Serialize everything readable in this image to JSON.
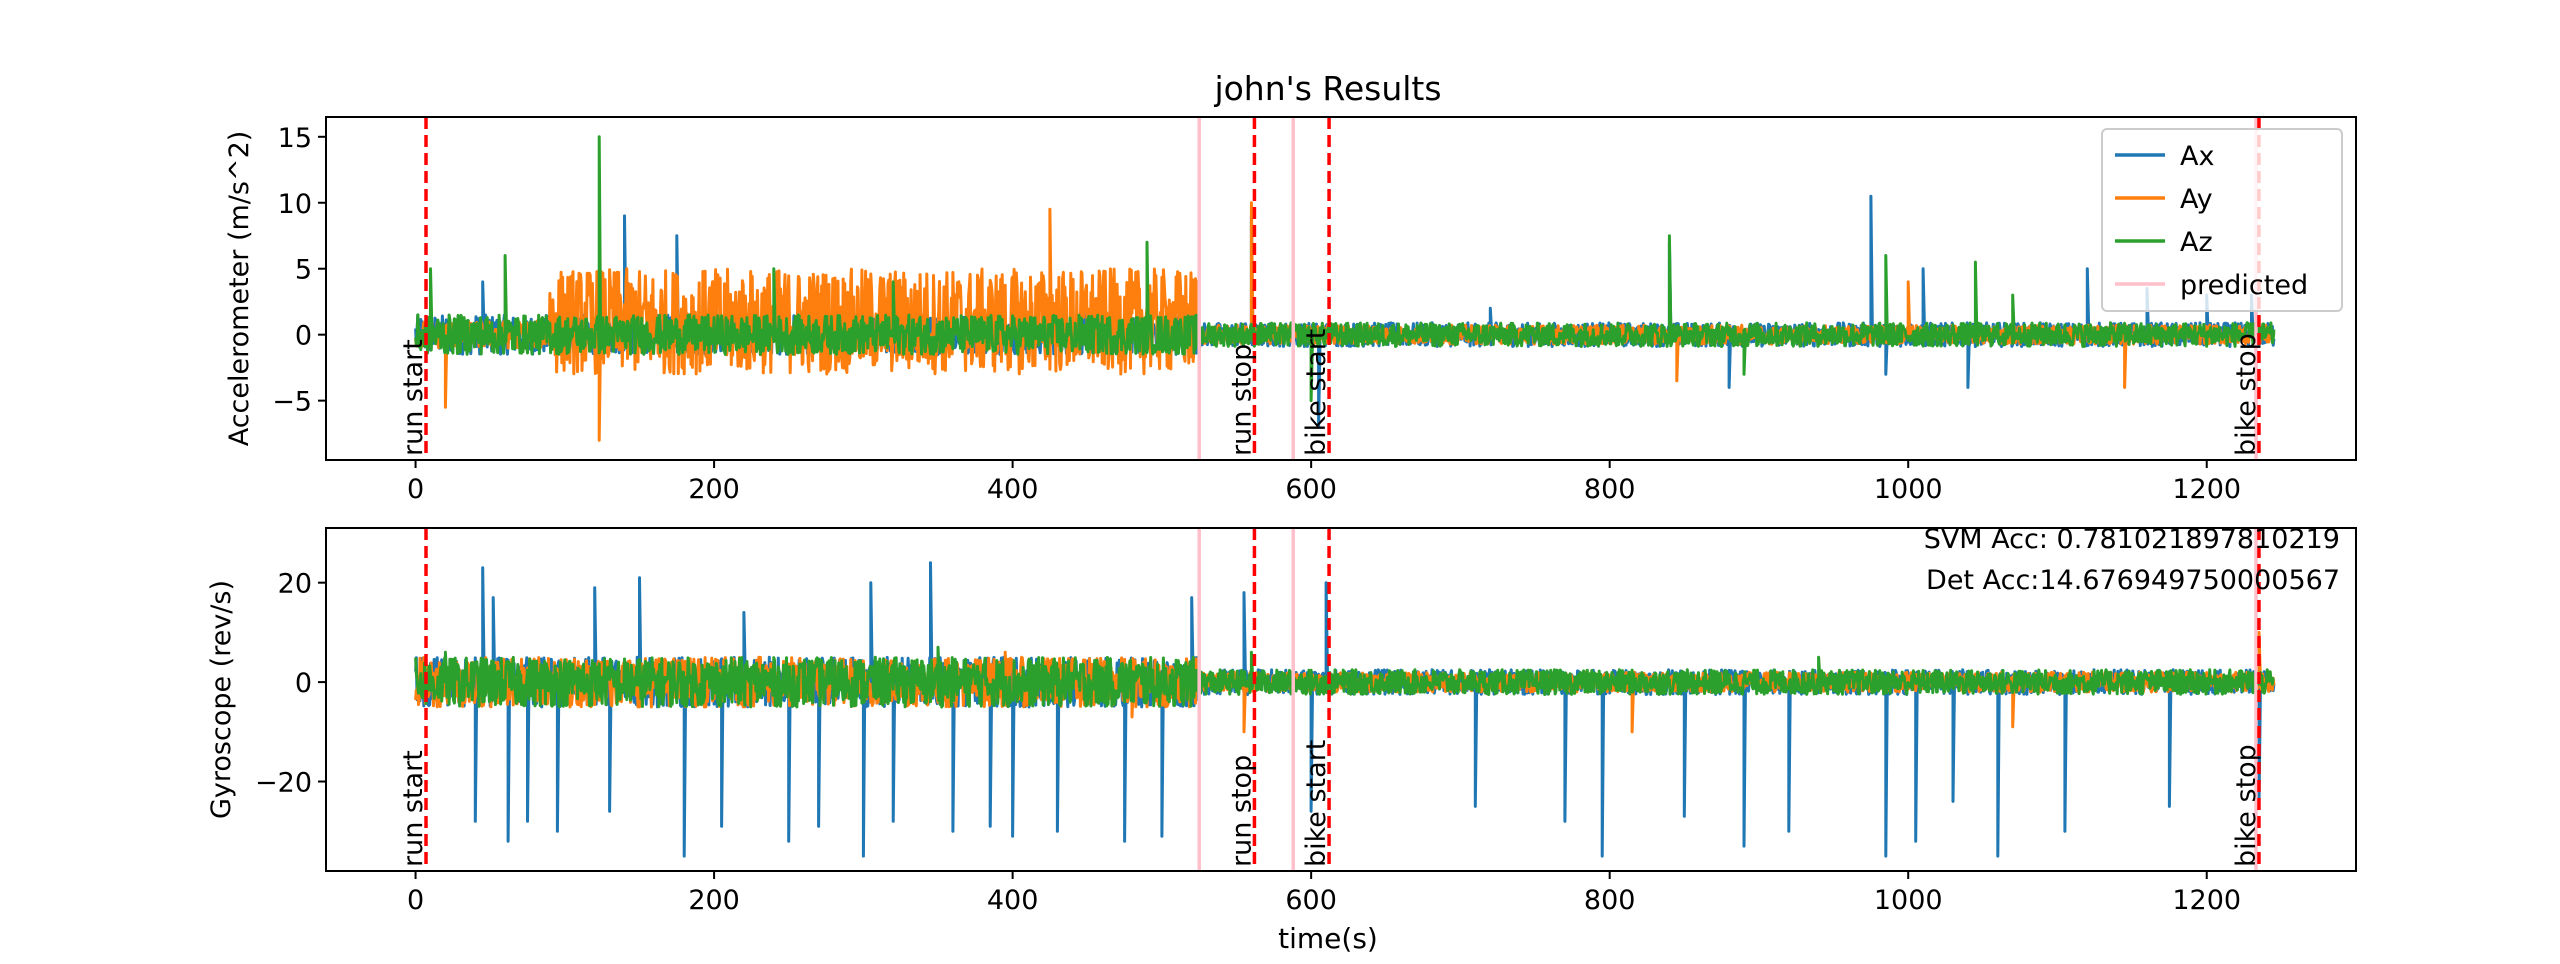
{
  "chart_data": [
    {
      "type": "line",
      "title": "john's Results",
      "xlabel": "",
      "ylabel": "Accelerometer (m/s^2)",
      "xlim": [
        -60,
        1300
      ],
      "ylim": [
        -9.5,
        16.5
      ],
      "xticks": [
        0,
        200,
        400,
        600,
        800,
        1000,
        1200
      ],
      "yticks": [
        -5,
        0,
        5,
        10,
        15
      ],
      "grid": false,
      "legend": {
        "placement": "upper right",
        "entries": [
          "Ax",
          "Ay",
          "Az",
          "predicted"
        ]
      },
      "series": [
        {
          "name": "Ax",
          "color": "#1f77b4",
          "style": "dense noisy signal, band about ±1.5 around 0, spikes up to 10 near x=985",
          "values_note": "spikes",
          "spikes": [
            [
              45,
              4
            ],
            [
              140,
              9
            ],
            [
              175,
              7.5
            ],
            [
              560,
              9
            ],
            [
              605,
              -7
            ],
            [
              720,
              2
            ],
            [
              840,
              7
            ],
            [
              880,
              -4
            ],
            [
              975,
              10.5
            ],
            [
              985,
              -3
            ],
            [
              1010,
              5
            ],
            [
              1040,
              -4
            ],
            [
              1120,
              5
            ],
            [
              1160,
              3.5
            ],
            [
              1200,
              3
            ],
            [
              1230,
              3
            ]
          ]
        },
        {
          "name": "Ay",
          "color": "#ff7f0e",
          "style": "wide oscillation band -3 to 5 between x=90 and x=525, narrow elsewhere",
          "band": {
            "x_start": 90,
            "x_end": 525,
            "low": -3,
            "high": 5
          },
          "spikes": [
            [
              20,
              -5.5
            ],
            [
              123,
              -8
            ],
            [
              425,
              9.5
            ],
            [
              560,
              10
            ],
            [
              845,
              -3.5
            ],
            [
              1000,
              4
            ],
            [
              1145,
              -4
            ]
          ]
        },
        {
          "name": "Az",
          "color": "#2ca02c",
          "style": "dense noisy signal around 0, band about ±1.5",
          "spikes": [
            [
              10,
              5
            ],
            [
              60,
              6
            ],
            [
              123,
              15
            ],
            [
              240,
              5
            ],
            [
              320,
              4
            ],
            [
              490,
              7
            ],
            [
              600,
              -5
            ],
            [
              840,
              7.5
            ],
            [
              890,
              -3
            ],
            [
              985,
              6
            ],
            [
              1045,
              5.5
            ],
            [
              1070,
              3
            ]
          ]
        }
      ],
      "vlines": [
        {
          "x": 7,
          "color": "#ff0000",
          "style": "dashed",
          "label": "run start"
        },
        {
          "x": 525,
          "color": "#ffc0cb",
          "style": "solid",
          "label": ""
        },
        {
          "x": 562,
          "color": "#ff0000",
          "style": "dashed",
          "label": "run stop"
        },
        {
          "x": 588,
          "color": "#ffc0cb",
          "style": "solid",
          "label": ""
        },
        {
          "x": 612,
          "color": "#ff0000",
          "style": "dashed",
          "label": "bike start"
        },
        {
          "x": 1233,
          "color": "#ffc0cb",
          "style": "solid",
          "label": ""
        },
        {
          "x": 1235,
          "color": "#ff0000",
          "style": "dashed",
          "label": "bike stop"
        }
      ]
    },
    {
      "type": "line",
      "title": "",
      "xlabel": "time(s)",
      "ylabel": "Gyroscope (rev/s)",
      "xlim": [
        -60,
        1300
      ],
      "ylim": [
        -38,
        31
      ],
      "xticks": [
        0,
        200,
        400,
        600,
        800,
        1000,
        1200
      ],
      "yticks": [
        -20,
        0,
        20
      ],
      "grid": false,
      "annotations": [
        "SVM Acc: 0.781021897810219",
        "Det Acc:14.676949750000567"
      ],
      "series": [
        {
          "name": "Ax",
          "color": "#1f77b4",
          "style": "dense signal band about ±5 to x=525, narrower after; many tall spikes",
          "spikes": [
            [
              40,
              -28
            ],
            [
              45,
              23
            ],
            [
              52,
              17
            ],
            [
              62,
              -32
            ],
            [
              75,
              -28
            ],
            [
              95,
              -30
            ],
            [
              120,
              19
            ],
            [
              130,
              -26
            ],
            [
              150,
              21
            ],
            [
              180,
              -35
            ],
            [
              205,
              -29
            ],
            [
              220,
              14
            ],
            [
              250,
              -32
            ],
            [
              270,
              -29
            ],
            [
              300,
              -35
            ],
            [
              305,
              20
            ],
            [
              320,
              -28
            ],
            [
              345,
              24
            ],
            [
              360,
              -30
            ],
            [
              385,
              -29
            ],
            [
              400,
              -31
            ],
            [
              430,
              -30
            ],
            [
              475,
              -32
            ],
            [
              500,
              -31
            ],
            [
              520,
              17
            ],
            [
              555,
              18
            ],
            [
              600,
              -26
            ],
            [
              610,
              20
            ],
            [
              710,
              -25
            ],
            [
              770,
              -28
            ],
            [
              795,
              -35
            ],
            [
              850,
              -27
            ],
            [
              890,
              -33
            ],
            [
              920,
              -30
            ],
            [
              985,
              -35
            ],
            [
              1005,
              -32
            ],
            [
              1030,
              -24
            ],
            [
              1060,
              -35
            ],
            [
              1105,
              -30
            ],
            [
              1175,
              -25
            ],
            [
              1235,
              -25
            ]
          ]
        },
        {
          "name": "Ay",
          "color": "#ff7f0e",
          "style": "band about ±4 around 0",
          "spikes": [
            [
              395,
              6
            ],
            [
              480,
              -7
            ],
            [
              555,
              -10
            ],
            [
              815,
              -10
            ],
            [
              1070,
              -9
            ],
            [
              1235,
              10
            ]
          ]
        },
        {
          "name": "Az",
          "color": "#2ca02c",
          "style": "dense band about ±5 around 0 up to x=525, narrower after",
          "spikes": [
            [
              20,
              6
            ],
            [
              350,
              7
            ],
            [
              560,
              6
            ],
            [
              940,
              5
            ]
          ]
        }
      ],
      "vlines": [
        {
          "x": 7,
          "color": "#ff0000",
          "style": "dashed",
          "label": "run start"
        },
        {
          "x": 525,
          "color": "#ffc0cb",
          "style": "solid",
          "label": ""
        },
        {
          "x": 562,
          "color": "#ff0000",
          "style": "dashed",
          "label": "run stop"
        },
        {
          "x": 588,
          "color": "#ffc0cb",
          "style": "solid",
          "label": ""
        },
        {
          "x": 612,
          "color": "#ff0000",
          "style": "dashed",
          "label": "bike start"
        },
        {
          "x": 1233,
          "color": "#ffc0cb",
          "style": "solid",
          "label": ""
        },
        {
          "x": 1235,
          "color": "#ff0000",
          "style": "dashed",
          "label": "bike stop"
        }
      ]
    }
  ]
}
